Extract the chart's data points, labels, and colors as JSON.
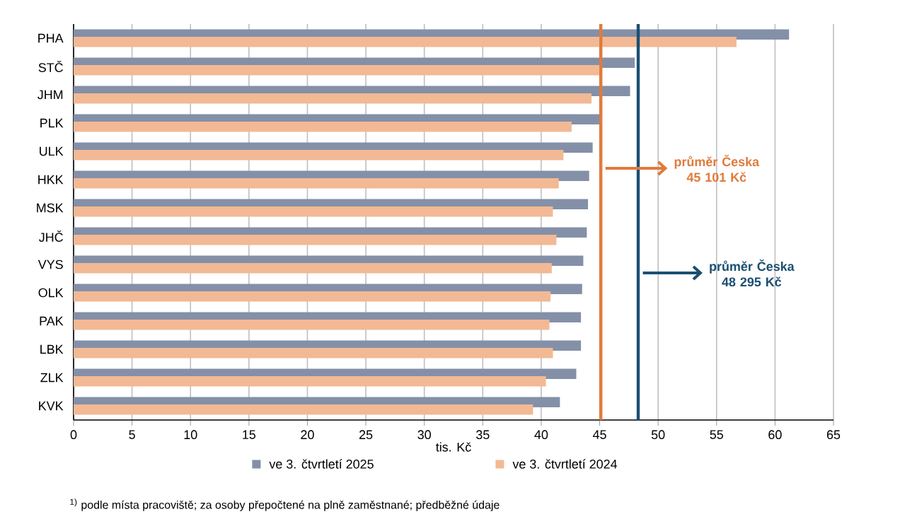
{
  "chart_data": {
    "type": "bar",
    "orientation": "horizontal",
    "xlabel": "tis. Kč",
    "categories": [
      "PHA",
      "STČ",
      "JHM",
      "PLK",
      "ULK",
      "HKK",
      "MSK",
      "JHČ",
      "VYS",
      "OLK",
      "PAK",
      "LBK",
      "ZLK",
      "KVK"
    ],
    "series": [
      {
        "name": "ve 3. čtvrtletí 2025",
        "color": "#8490a8",
        "values": [
          61.2,
          48.0,
          47.6,
          45.1,
          44.4,
          44.1,
          44.0,
          43.9,
          43.6,
          43.5,
          43.4,
          43.4,
          43.0,
          41.6
        ]
      },
      {
        "name": "ve 3. čtvrtletí 2024",
        "color": "#f2b994",
        "values": [
          56.7,
          45.2,
          44.3,
          42.6,
          41.9,
          41.5,
          41.0,
          41.3,
          40.9,
          40.8,
          40.7,
          41.0,
          40.4,
          39.3
        ]
      }
    ],
    "xlim": [
      0,
      65
    ],
    "xticks": [
      0,
      5,
      10,
      15,
      20,
      25,
      30,
      35,
      40,
      45,
      50,
      55,
      60,
      65
    ],
    "grid": "x",
    "legend": "bottom",
    "ref_lines": [
      {
        "axis": "x",
        "value": 45.101,
        "label": "průměr Česka 45 101 Kč",
        "color": "#e07b3c"
      },
      {
        "axis": "x",
        "value": 48.295,
        "label": "průměr Česka 48 295 Kč",
        "color": "#1b4f72"
      }
    ],
    "annotations": [
      "$^{1)}$ podle místa pracoviště; za osoby přepočtené na plně zaměstnané; předběžné údaje"
    ]
  }
}
